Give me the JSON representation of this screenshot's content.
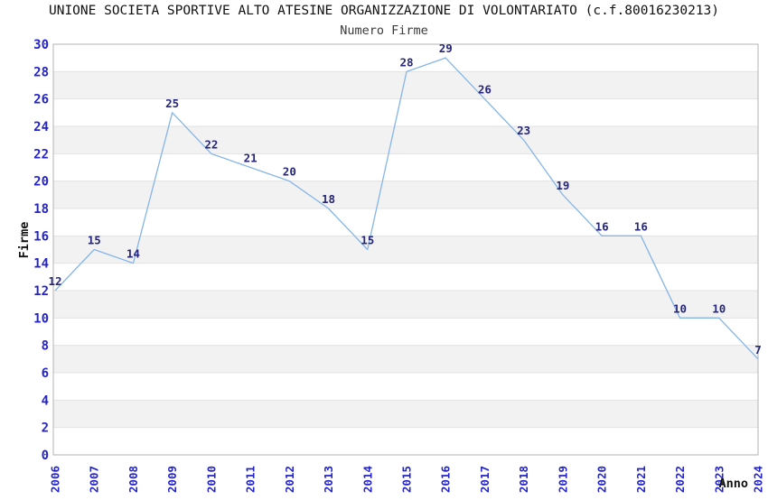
{
  "chart_data": {
    "type": "line",
    "title": "UNIONE SOCIETA SPORTIVE ALTO ATESINE ORGANIZZAZIONE DI VOLONTARIATO (c.f.80016230213)",
    "subtitle": "Numero Firme",
    "xlabel": "Anno",
    "ylabel": "Firme",
    "x": [
      "2006",
      "2007",
      "2008",
      "2009",
      "2010",
      "2011",
      "2012",
      "2013",
      "2014",
      "2015",
      "2016",
      "2017",
      "2018",
      "2019",
      "2020",
      "2021",
      "2022",
      "2023",
      "2024"
    ],
    "values": [
      12,
      15,
      14,
      25,
      22,
      21,
      20,
      18,
      15,
      28,
      29,
      26,
      23,
      19,
      16,
      16,
      10,
      10,
      7
    ],
    "ylim": [
      0,
      30
    ],
    "ytick_step": 2,
    "grid": true,
    "banded_background": true,
    "point_labels": true,
    "legend_position": "none",
    "colors": {
      "line": "#85B5E8",
      "tick_label": "#2323CC",
      "point_label": "#26267A",
      "band": "#F2F2F2",
      "background": "#FFFFFF",
      "grid": "#E3E3E3",
      "border": "#B3B3B3",
      "title": "#111111",
      "subtitle": "#3A3A3A"
    }
  }
}
